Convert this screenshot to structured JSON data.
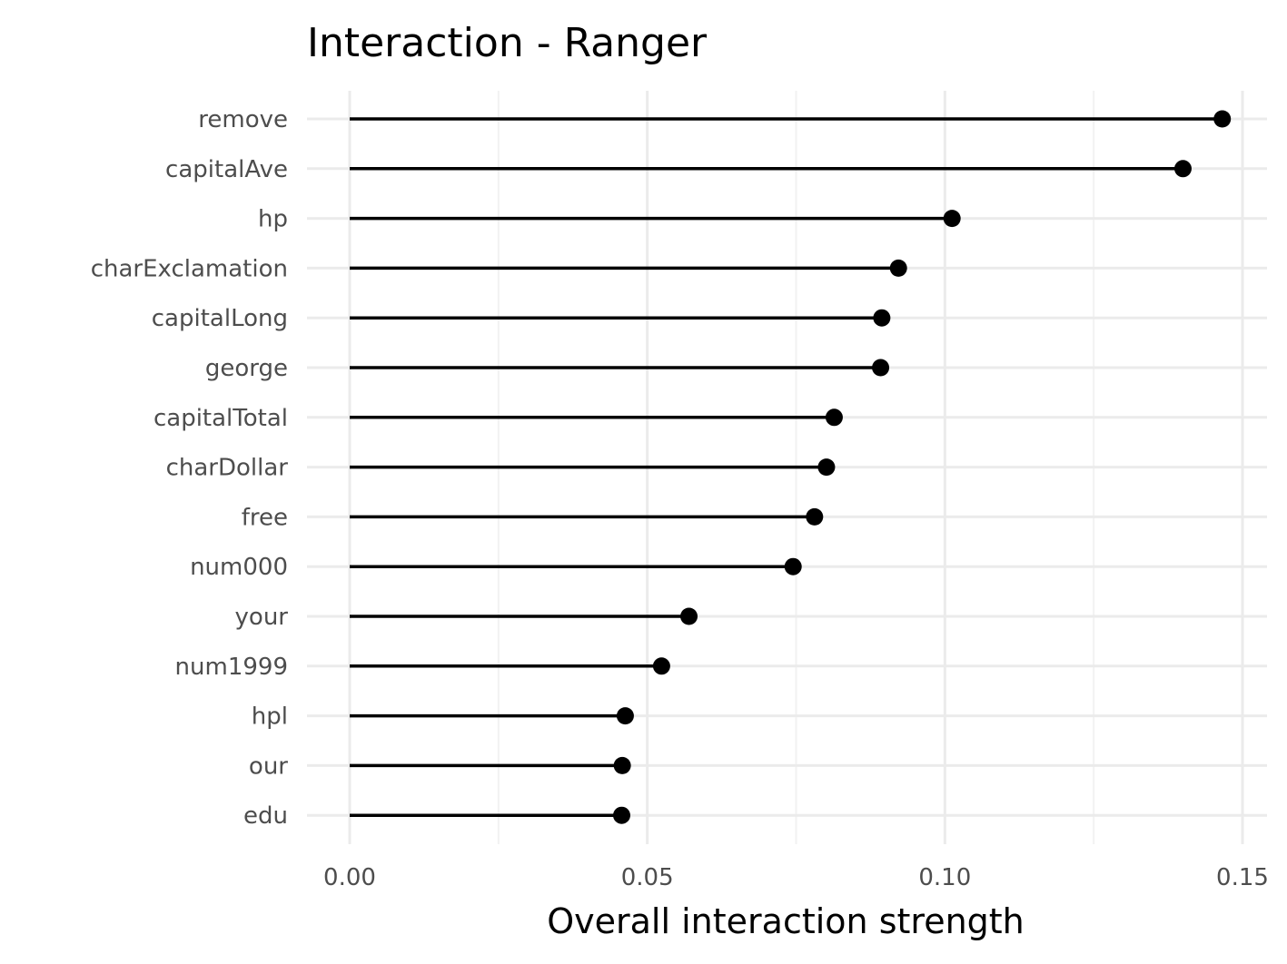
{
  "chart_data": {
    "type": "lollipop",
    "title": "Interaction - Ranger",
    "xlabel": "Overall interaction strength",
    "ylabel": "",
    "xlim": [
      0,
      0.155
    ],
    "x_ticks": [
      0,
      0.05,
      0.1,
      0.15
    ],
    "x_tick_labels": [
      "0.00",
      "0.05",
      "0.10",
      "0.15"
    ],
    "grid": true,
    "categories": [
      "remove",
      "capitalAve",
      "hp",
      "charExclamation",
      "capitalLong",
      "george",
      "capitalTotal",
      "charDollar",
      "free",
      "num000",
      "your",
      "num1999",
      "hpl",
      "our",
      "edu"
    ],
    "values": [
      0.1466,
      0.14,
      0.1012,
      0.0922,
      0.0894,
      0.0892,
      0.0814,
      0.0801,
      0.0781,
      0.0745,
      0.057,
      0.0524,
      0.0463,
      0.0458,
      0.0457
    ],
    "colors": {
      "line": "#000000",
      "point": "#000000",
      "grid_major": "#ebebeb",
      "grid_minor": "#f2f2f2"
    }
  }
}
